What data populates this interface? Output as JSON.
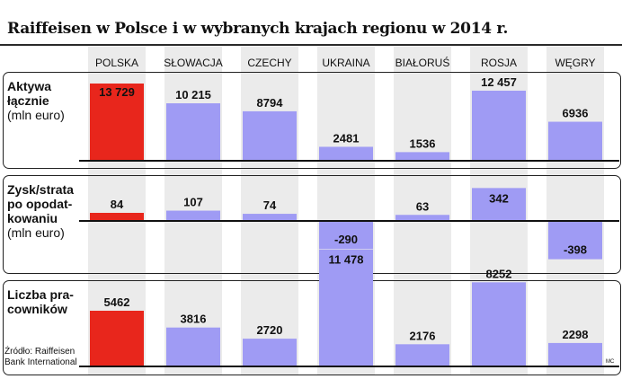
{
  "title": "Raiffeisen w Polsce i w wybranych krajach regionu w 2014 r.",
  "colors": {
    "highlight": "#e8261c",
    "bar": "#9f9bf4",
    "column_bg": "#ebebeb"
  },
  "chart_data": {
    "type": "bar",
    "categories": [
      "POLSKA",
      "SŁOWACJA",
      "CZECHY",
      "UKRAINA",
      "BIAŁORUŚ",
      "ROSJA",
      "WĘGRY"
    ],
    "highlight_category": "POLSKA",
    "panels": [
      {
        "label_bold": [
          "Aktywa",
          "łącznie"
        ],
        "label_unit": "(mln euro)",
        "values": [
          13729,
          10215,
          8794,
          2481,
          1536,
          12457,
          6936
        ],
        "value_labels": [
          "13 729",
          "10 215",
          "8794",
          "2481",
          "1536",
          "12 457",
          "6936"
        ]
      },
      {
        "label_bold": [
          "Zysk/strata",
          "po opodat-",
          "kowaniu"
        ],
        "label_unit": "(mln euro)",
        "values": [
          84,
          107,
          74,
          -290,
          63,
          342,
          -398
        ],
        "value_labels": [
          "84",
          "107",
          "74",
          "-290",
          "63",
          "342",
          "-398"
        ]
      },
      {
        "label_bold": [
          "Liczba pra-",
          "cowników"
        ],
        "label_unit": "",
        "values": [
          5462,
          3816,
          2720,
          11478,
          2176,
          8252,
          2298
        ],
        "value_labels": [
          "5462",
          "3816",
          "2720",
          "11 478",
          "2176",
          "8252",
          "2298"
        ]
      }
    ]
  },
  "source": [
    "Źródło: Raiffeisen",
    "Bank International"
  ],
  "credit": "MC"
}
